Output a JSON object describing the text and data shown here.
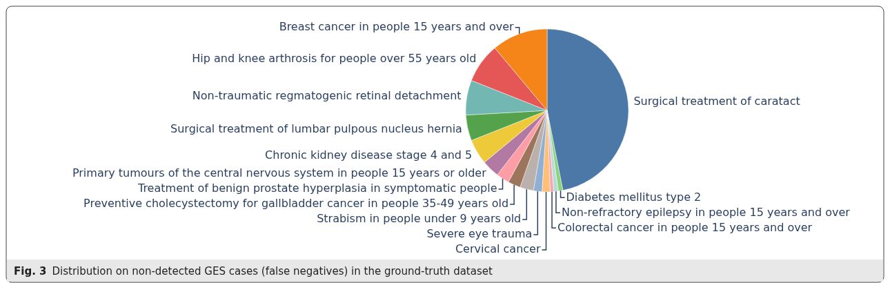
{
  "chart_data": {
    "type": "pie",
    "title": "Fig. 3",
    "subtitle": "Distribution on non-detected GES cases (false negatives) in the ground-truth dataset",
    "categories": [
      "Surgical treatment of caratact",
      "Diabetes mellitus type 2",
      "Non-refractory epilepsy in people 15 years and over",
      "Colorectal cancer in people 15 years and over",
      "Cervical cancer",
      "Severe eye trauma",
      "Strabism in people under 9 years old",
      "Preventive cholecystectomy for gallbladder cancer in people 35-49 years old",
      "Treatment of benign prostate hyperplasia in symptomatic people",
      "Primary tumours of the central nervous system in people 15 years or older",
      "Chronic kidney disease stage 4 and 5",
      "Surgical treatment of lumbar pulpous nucleus hernia",
      "Non-traumatic regmatogenic retinal detachment",
      "Hip and knee arthrosis for people over 55 years old",
      "Breast cancer in people 15 years and over"
    ],
    "values": [
      46.9,
      0.9,
      0.9,
      0.7,
      1.6,
      1.7,
      2.7,
      2.5,
      2.6,
      3.5,
      5.0,
      5.1,
      6.9,
      7.9,
      11.1
    ],
    "colors": [
      "#4c78a8",
      "#8cd17d",
      "#b6dcd9",
      "#f4a7b3",
      "#ffbf79",
      "#8fb0d3",
      "#bab0ac",
      "#9d755d",
      "#ff9da6",
      "#b279a2",
      "#eeca3b",
      "#54a24b",
      "#72b7b2",
      "#e45756",
      "#f58518"
    ]
  }
}
